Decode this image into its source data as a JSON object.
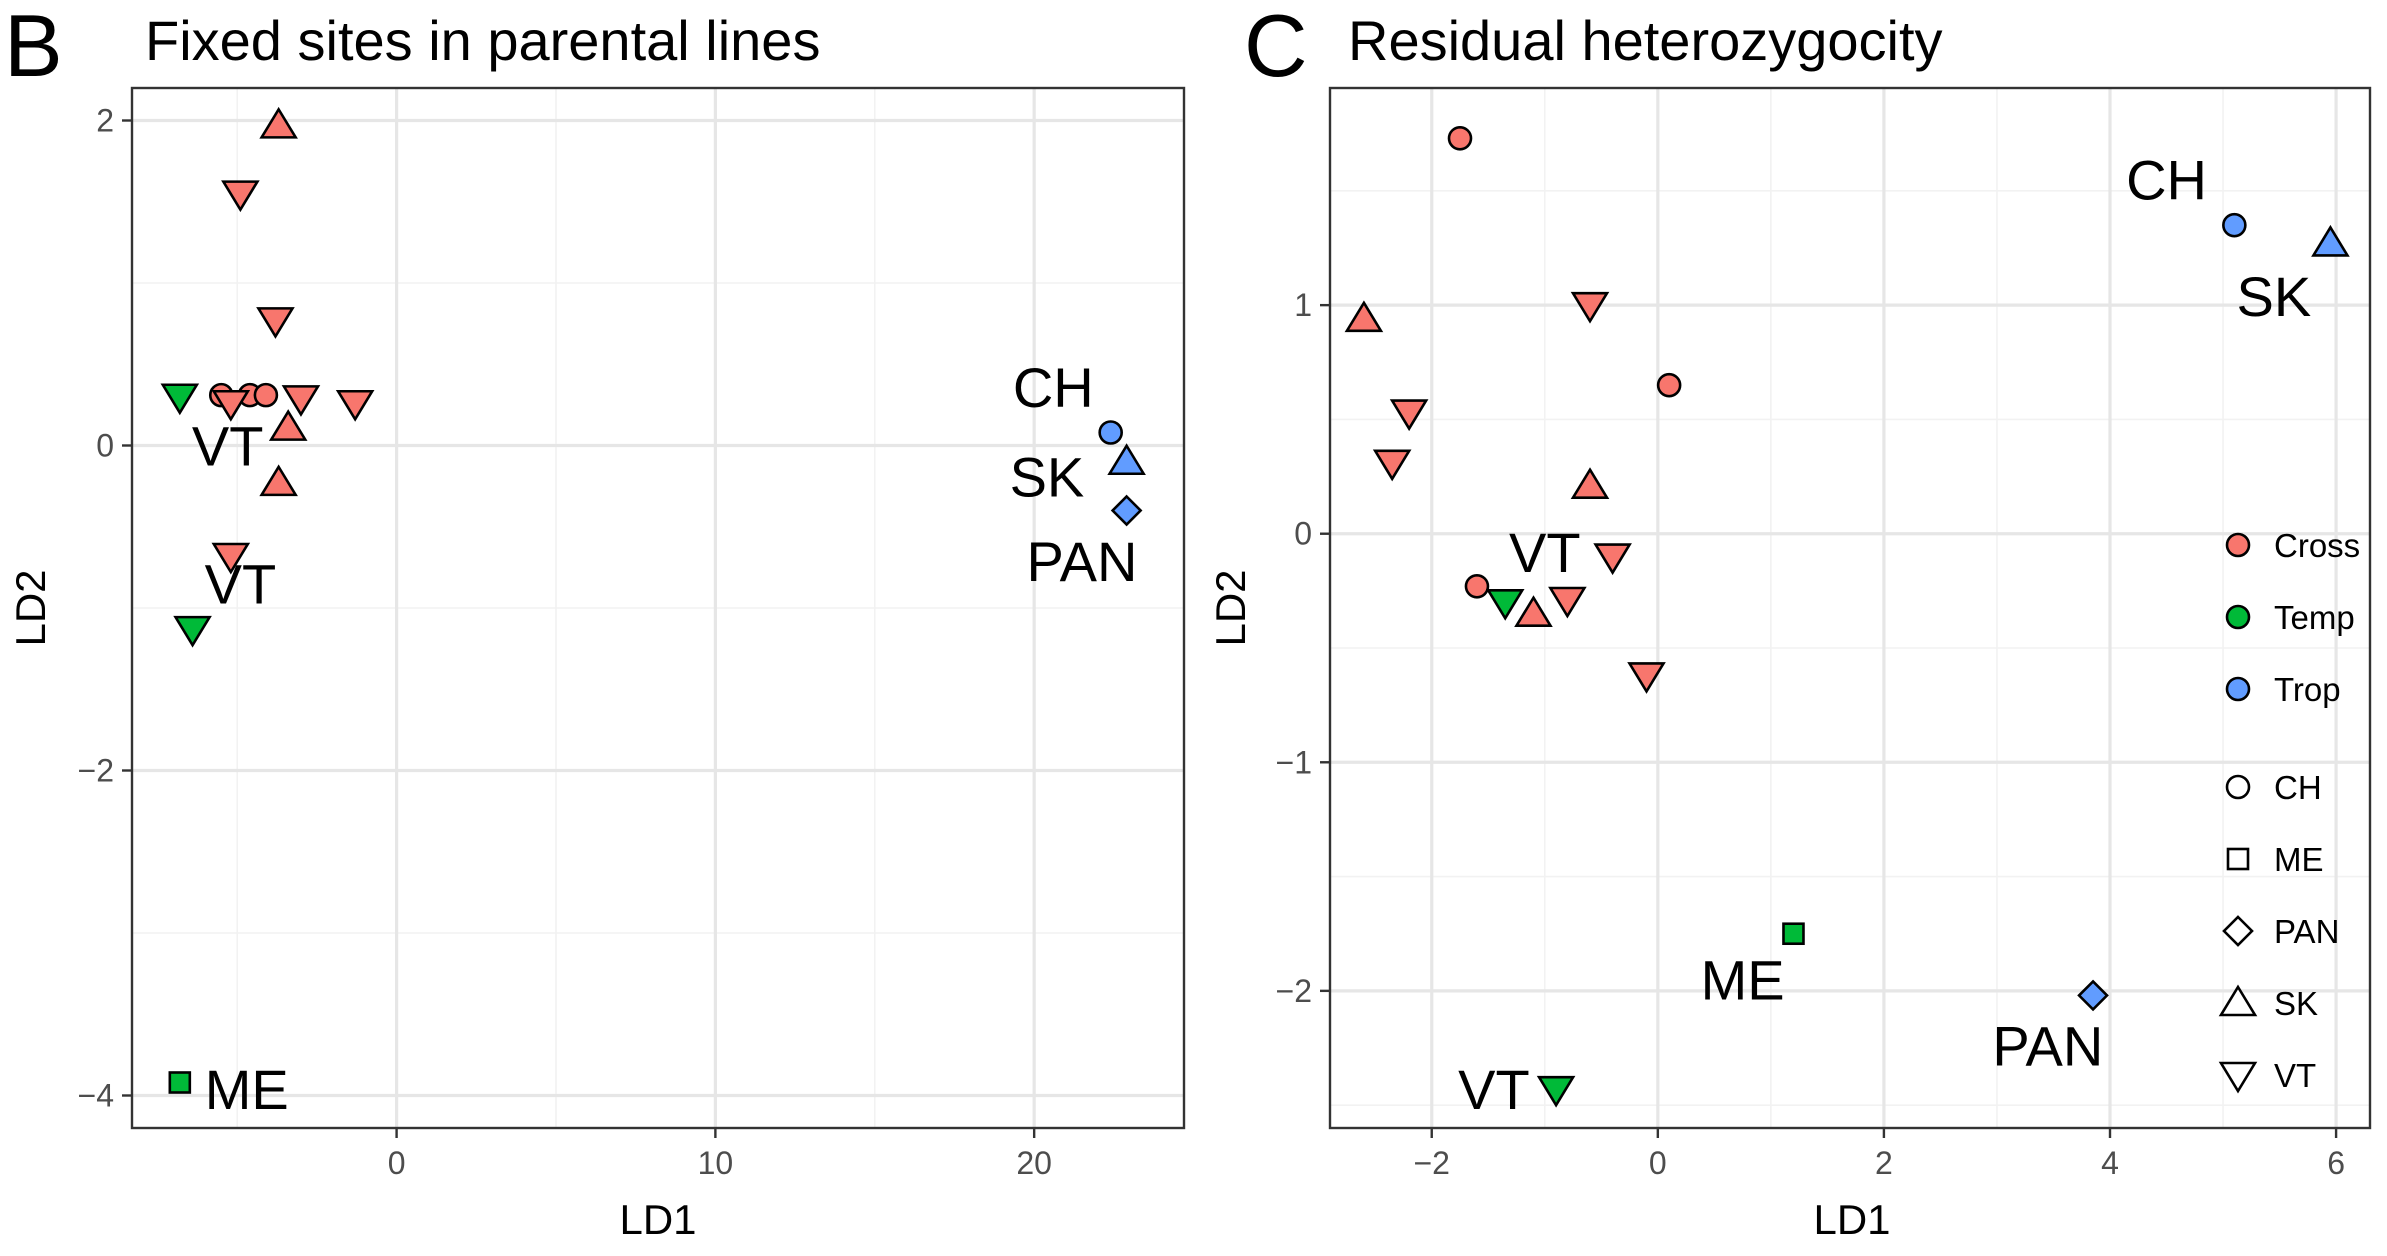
{
  "chart_data": [
    {
      "panel": "B",
      "title": "Fixed sites in parental lines",
      "type": "scatter",
      "xlabel": "LD1",
      "ylabel": "LD2",
      "xlim": [
        -8.3,
        24.7
      ],
      "ylim": [
        -4.2,
        2.2
      ],
      "xticks": [
        0,
        10,
        20
      ],
      "yticks": [
        2,
        0,
        -2,
        -4
      ],
      "xtick_labels": [
        "0",
        "10",
        "20"
      ],
      "ytick_labels": [
        "2",
        "0",
        "−2",
        "−4"
      ],
      "grid": true,
      "points": [
        {
          "x": -3.7,
          "y": 1.97,
          "group": "Cross",
          "shape": "SK"
        },
        {
          "x": -4.9,
          "y": 1.55,
          "group": "Cross",
          "shape": "VT"
        },
        {
          "x": -3.8,
          "y": 0.77,
          "group": "Cross",
          "shape": "VT"
        },
        {
          "x": -5.5,
          "y": 0.31,
          "group": "Cross",
          "shape": "CH"
        },
        {
          "x": -4.6,
          "y": 0.31,
          "group": "Cross",
          "shape": "CH"
        },
        {
          "x": -4.1,
          "y": 0.31,
          "group": "Cross",
          "shape": "CH"
        },
        {
          "x": -5.2,
          "y": 0.26,
          "group": "Cross",
          "shape": "VT"
        },
        {
          "x": -3.0,
          "y": 0.29,
          "group": "Cross",
          "shape": "VT"
        },
        {
          "x": -1.3,
          "y": 0.26,
          "group": "Cross",
          "shape": "VT"
        },
        {
          "x": -3.4,
          "y": 0.11,
          "group": "Cross",
          "shape": "SK"
        },
        {
          "x": -3.7,
          "y": -0.23,
          "group": "Cross",
          "shape": "SK"
        },
        {
          "x": -5.2,
          "y": -0.68,
          "group": "Cross",
          "shape": "VT"
        },
        {
          "x": -6.8,
          "y": 0.3,
          "group": "Temp",
          "shape": "VT"
        },
        {
          "x": -6.4,
          "y": -1.13,
          "group": "Temp",
          "shape": "VT"
        },
        {
          "x": -6.8,
          "y": -3.92,
          "group": "Temp",
          "shape": "ME"
        },
        {
          "x": 22.4,
          "y": 0.08,
          "group": "Trop",
          "shape": "CH"
        },
        {
          "x": 22.9,
          "y": -0.1,
          "group": "Trop",
          "shape": "SK"
        },
        {
          "x": 22.9,
          "y": -0.4,
          "group": "Trop",
          "shape": "PAN"
        }
      ],
      "annotations": [
        {
          "text": "VT",
          "x": -5.3,
          "y": 0.0
        },
        {
          "text": "VT",
          "x": -4.9,
          "y": -0.85
        },
        {
          "text": "ME",
          "x": -4.7,
          "y": -3.96
        },
        {
          "text": "CH",
          "x": 20.6,
          "y": 0.36
        },
        {
          "text": "SK",
          "x": 20.4,
          "y": -0.19
        },
        {
          "text": "PAN",
          "x": 21.5,
          "y": -0.71
        }
      ]
    },
    {
      "panel": "C",
      "title": "Residual heterozygocity",
      "type": "scatter",
      "xlabel": "LD1",
      "ylabel": "LD2",
      "xlim": [
        -2.9,
        6.3
      ],
      "ylim": [
        -2.6,
        1.95
      ],
      "xticks": [
        -2,
        0,
        2,
        4,
        6
      ],
      "yticks": [
        1,
        0,
        -1,
        -2
      ],
      "xtick_labels": [
        "−2",
        "0",
        "2",
        "4",
        "6"
      ],
      "ytick_labels": [
        "1",
        "0",
        "−1",
        "−2"
      ],
      "grid": true,
      "points": [
        {
          "x": -1.75,
          "y": 1.73,
          "group": "Cross",
          "shape": "CH"
        },
        {
          "x": 0.1,
          "y": 0.65,
          "group": "Cross",
          "shape": "CH"
        },
        {
          "x": -1.6,
          "y": -0.23,
          "group": "Cross",
          "shape": "CH"
        },
        {
          "x": -2.6,
          "y": 0.94,
          "group": "Cross",
          "shape": "SK"
        },
        {
          "x": -0.6,
          "y": 0.21,
          "group": "Cross",
          "shape": "SK"
        },
        {
          "x": -1.1,
          "y": -0.35,
          "group": "Cross",
          "shape": "SK"
        },
        {
          "x": -0.6,
          "y": 1.0,
          "group": "Cross",
          "shape": "VT"
        },
        {
          "x": -2.2,
          "y": 0.53,
          "group": "Cross",
          "shape": "VT"
        },
        {
          "x": -2.35,
          "y": 0.31,
          "group": "Cross",
          "shape": "VT"
        },
        {
          "x": -0.4,
          "y": -0.1,
          "group": "Cross",
          "shape": "VT"
        },
        {
          "x": -0.8,
          "y": -0.29,
          "group": "Cross",
          "shape": "VT"
        },
        {
          "x": -0.1,
          "y": -0.62,
          "group": "Cross",
          "shape": "VT"
        },
        {
          "x": -1.35,
          "y": -0.3,
          "group": "Temp",
          "shape": "VT"
        },
        {
          "x": -0.9,
          "y": -2.43,
          "group": "Temp",
          "shape": "VT"
        },
        {
          "x": 1.2,
          "y": -1.75,
          "group": "Temp",
          "shape": "ME"
        },
        {
          "x": 5.1,
          "y": 1.35,
          "group": "Trop",
          "shape": "CH"
        },
        {
          "x": 5.95,
          "y": 1.27,
          "group": "Trop",
          "shape": "SK"
        },
        {
          "x": 3.85,
          "y": -2.02,
          "group": "Trop",
          "shape": "PAN"
        }
      ],
      "annotations": [
        {
          "text": "VT",
          "x": -1.0,
          "y": -0.08
        },
        {
          "text": "VT",
          "x": -1.45,
          "y": -2.43
        },
        {
          "text": "ME",
          "x": 0.75,
          "y": -1.95
        },
        {
          "text": "PAN",
          "x": 3.45,
          "y": -2.24
        },
        {
          "text": "CH",
          "x": 4.5,
          "y": 1.55
        },
        {
          "text": "SK",
          "x": 5.45,
          "y": 1.04
        }
      ]
    }
  ],
  "legend": {
    "placement": "inside right of panel C",
    "colour_entries": [
      {
        "label": "Cross",
        "color": "#f8766d"
      },
      {
        "label": "Temp",
        "color": "#00ba38"
      },
      {
        "label": "Trop",
        "color": "#619cff"
      }
    ],
    "shape_entries": [
      {
        "label": "CH",
        "shape": "circle"
      },
      {
        "label": "ME",
        "shape": "square"
      },
      {
        "label": "PAN",
        "shape": "diamond"
      },
      {
        "label": "SK",
        "shape": "triangle-up"
      },
      {
        "label": "VT",
        "shape": "triangle-down"
      }
    ]
  },
  "colors": {
    "Cross": "#f8766d",
    "Temp": "#00ba38",
    "Trop": "#619cff"
  }
}
